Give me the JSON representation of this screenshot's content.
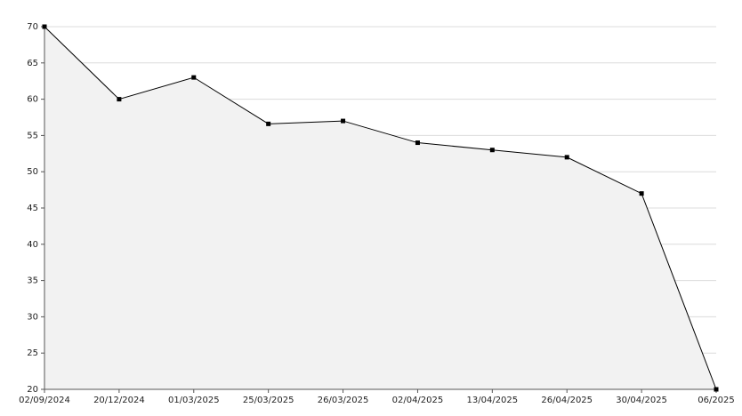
{
  "chart_data": {
    "type": "area-line",
    "categories": [
      "02/09/2024",
      "20/12/2024",
      "01/03/2025",
      "25/03/2025",
      "26/03/2025",
      "02/04/2025",
      "13/04/2025",
      "26/04/2025",
      "30/04/2025",
      "06/2025"
    ],
    "values": [
      70,
      60,
      63,
      56.6,
      57,
      54,
      53,
      52,
      47,
      20
    ],
    "color": "#000000",
    "fill": "#f2f2f2",
    "ylim": [
      20,
      70
    ],
    "yticks": [
      20,
      25,
      30,
      35,
      40,
      45,
      50,
      55,
      60,
      65,
      70
    ],
    "grid": true
  }
}
